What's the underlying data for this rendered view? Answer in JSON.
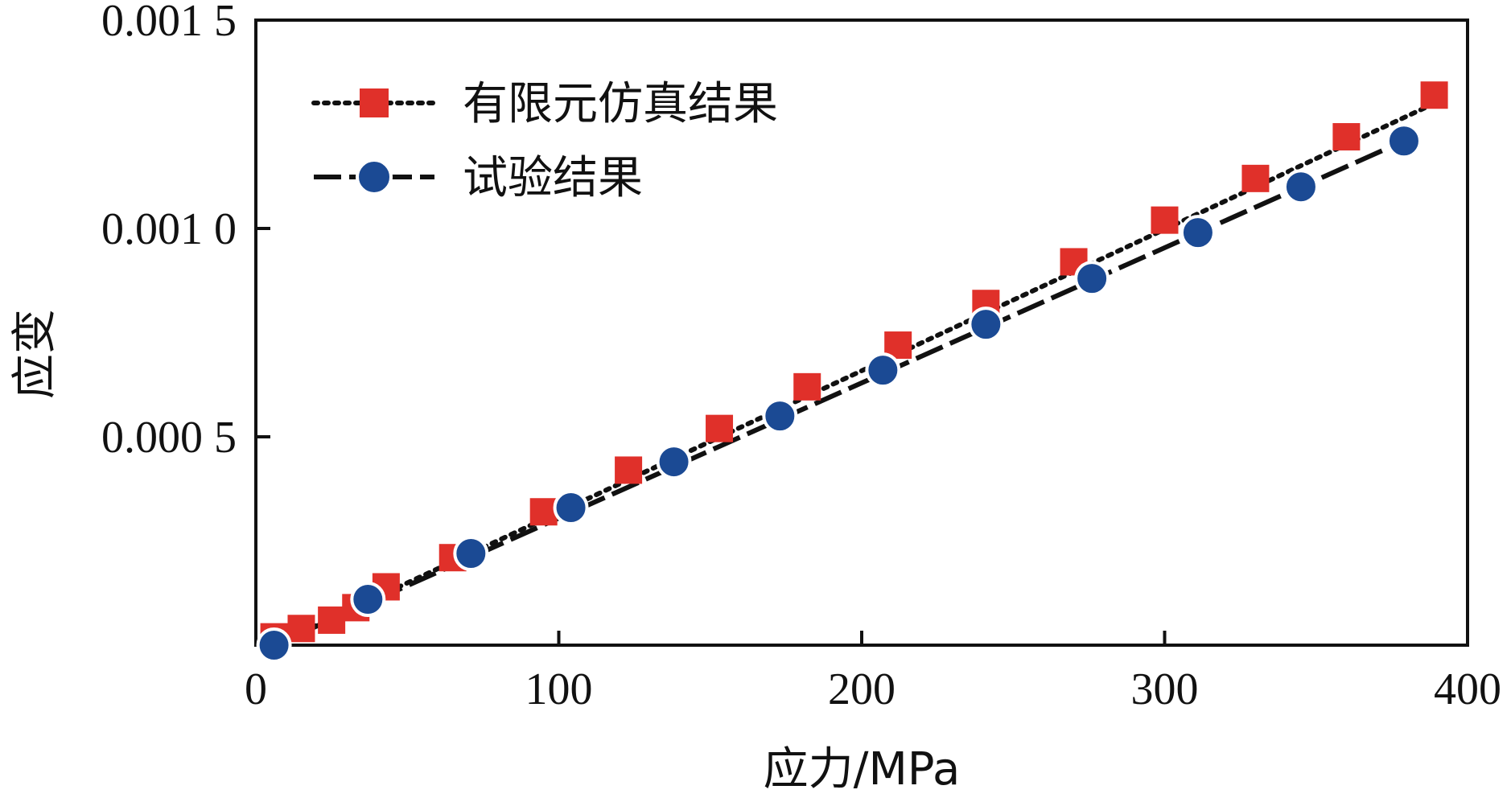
{
  "chart_data": {
    "type": "scatter",
    "title": "",
    "xlabel": "应力/MPa",
    "ylabel": "应变",
    "xlim": [
      0,
      400
    ],
    "ylim": [
      0,
      0.0015
    ],
    "x_ticks": [
      0,
      100,
      200,
      300,
      400
    ],
    "x_tick_labels": [
      "0",
      "100",
      "200",
      "300",
      "400"
    ],
    "y_ticks": [
      0.0005,
      0.001,
      0.0015
    ],
    "y_tick_labels": [
      "0.000 5",
      "0.001 0",
      "0.001 5"
    ],
    "grid": false,
    "legend_position": "top-left",
    "series": [
      {
        "name": "有限元仿真结果",
        "marker": "square",
        "line": "dotted",
        "color": "#e0302a",
        "x": [
          6,
          15,
          25,
          33,
          43,
          65,
          95,
          123,
          153,
          182,
          212,
          241,
          270,
          300,
          330,
          360,
          389
        ],
        "y": [
          2e-05,
          4e-05,
          6e-05,
          9e-05,
          0.00014,
          0.00021,
          0.00032,
          0.00042,
          0.00052,
          0.00062,
          0.00072,
          0.00082,
          0.00092,
          0.00102,
          0.00112,
          0.00122,
          0.00132
        ],
        "fit_line": [
          [
            6,
            0.0
          ],
          [
            389,
            0.0013
          ]
        ]
      },
      {
        "name": "试验结果",
        "marker": "circle",
        "line": "dashed",
        "color": "#1b4a94",
        "x": [
          6,
          37,
          71,
          104,
          138,
          173,
          207,
          241,
          276,
          311,
          345,
          379
        ],
        "y": [
          0.0,
          0.00011,
          0.00022,
          0.00033,
          0.00044,
          0.00055,
          0.00066,
          0.00077,
          0.00088,
          0.00099,
          0.0011,
          0.00121
        ],
        "fit_line": [
          [
            6,
            0.0
          ],
          [
            379,
            0.00121
          ]
        ]
      }
    ]
  }
}
